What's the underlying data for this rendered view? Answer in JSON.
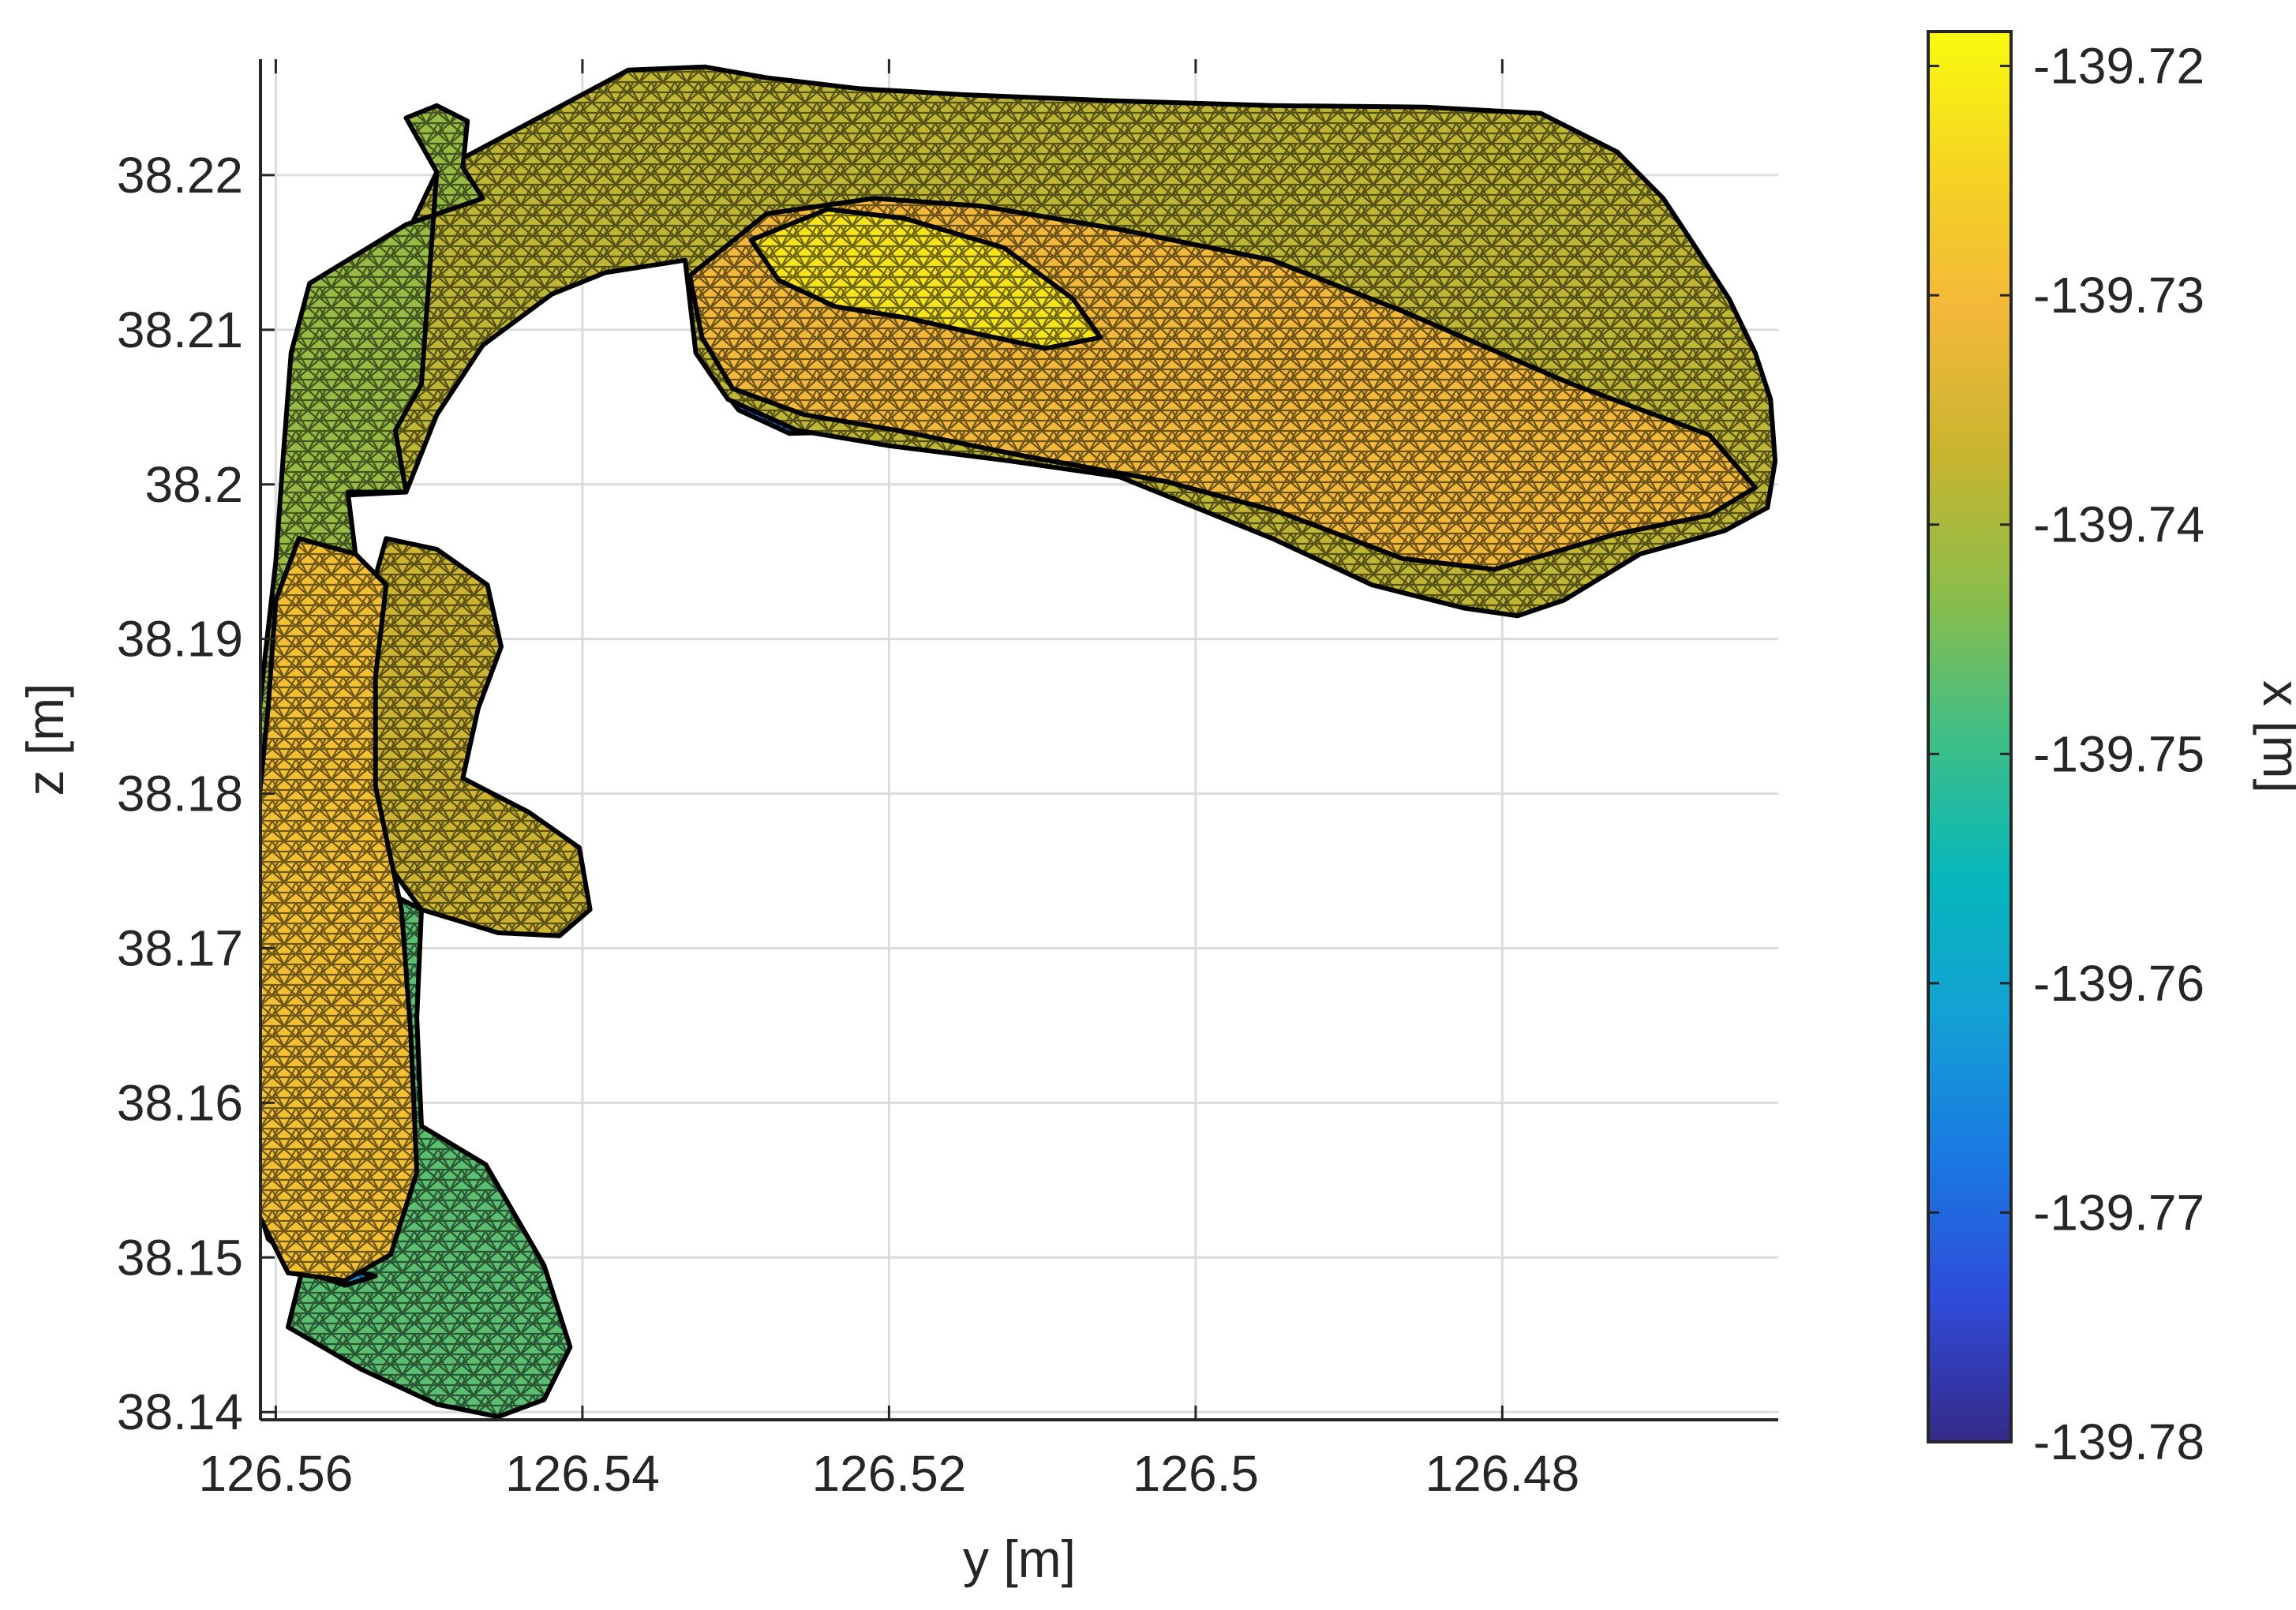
{
  "chart_data": {
    "type": "surface-mesh",
    "title": "",
    "xlabel": "y [m]",
    "ylabel": "z [m]",
    "colorbar_label": "x [m]",
    "x_axis": {
      "reversed": true,
      "lim": [
        126.561,
        126.462
      ],
      "ticks": [
        126.56,
        126.54,
        126.52,
        126.5,
        126.48
      ],
      "tick_labels": [
        "126.56",
        "126.54",
        "126.52",
        "126.5",
        "126.48"
      ]
    },
    "y_axis": {
      "lim": [
        38.1395,
        38.2275
      ],
      "ticks": [
        38.14,
        38.15,
        38.16,
        38.17,
        38.18,
        38.19,
        38.2,
        38.21,
        38.22
      ],
      "tick_labels": [
        "38.14",
        "38.15",
        "38.16",
        "38.17",
        "38.18",
        "38.19",
        "38.2",
        "38.21",
        "38.22"
      ]
    },
    "colorbar": {
      "colormap": "parula",
      "lim": [
        -139.78,
        -139.7185
      ],
      "ticks": [
        -139.72,
        -139.73,
        -139.74,
        -139.75,
        -139.76,
        -139.77,
        -139.78
      ],
      "tick_labels": [
        "-139.72",
        "-139.73",
        "-139.74",
        "-139.75",
        "-139.76",
        "-139.77",
        "-139.78"
      ],
      "stops": [
        "#352a87",
        "#2f4bd8",
        "#1a78e3",
        "#14a0d4",
        "#06b7bb",
        "#3fbf86",
        "#8bbd4a",
        "#c8b52f",
        "#f2b83a",
        "#f5d323",
        "#f9fb0e"
      ]
    },
    "grid": true,
    "mesh": {
      "edge_color": "#000000",
      "wireframe": true
    },
    "surfaces": [
      {
        "part": "upper-arm-shadow",
        "x_value": -139.768,
        "outline": [
          [
            126.5323,
            38.2097
          ],
          [
            126.5317,
            38.2072
          ],
          [
            126.5298,
            38.2048
          ],
          [
            126.5265,
            38.2033
          ],
          [
            126.5215,
            38.2034
          ],
          [
            126.5158,
            38.2031
          ],
          [
            126.511,
            38.2025
          ],
          [
            126.5175,
            38.2041
          ],
          [
            126.5225,
            38.2055
          ],
          [
            126.5268,
            38.2069
          ],
          [
            126.5305,
            38.2085
          ]
        ]
      },
      {
        "part": "upper-arm",
        "x_value": -139.738,
        "outline": [
          [
            126.537,
            38.2268
          ],
          [
            126.532,
            38.227
          ],
          [
            126.528,
            38.2263
          ],
          [
            126.522,
            38.2256
          ],
          [
            126.515,
            38.2252
          ],
          [
            126.505,
            38.2248
          ],
          [
            126.495,
            38.2245
          ],
          [
            126.485,
            38.2244
          ],
          [
            126.4775,
            38.224
          ],
          [
            126.4725,
            38.2215
          ],
          [
            126.4695,
            38.2185
          ],
          [
            126.4675,
            38.2155
          ],
          [
            126.4652,
            38.212
          ],
          [
            126.4635,
            38.2085
          ],
          [
            126.4625,
            38.2055
          ],
          [
            126.4622,
            38.2015
          ],
          [
            126.4627,
            38.1985
          ],
          [
            126.4655,
            38.197
          ],
          [
            126.471,
            38.1955
          ],
          [
            126.476,
            38.1925
          ],
          [
            126.479,
            38.1915
          ],
          [
            126.4825,
            38.192
          ],
          [
            126.4885,
            38.1935
          ],
          [
            126.495,
            38.1965
          ],
          [
            126.5,
            38.1985
          ],
          [
            126.505,
            38.2005
          ],
          [
            126.512,
            38.2015
          ],
          [
            126.52,
            38.2025
          ],
          [
            126.526,
            38.2035
          ],
          [
            126.5305,
            38.2055
          ],
          [
            126.5326,
            38.2085
          ],
          [
            126.5333,
            38.2145
          ],
          [
            126.5385,
            38.2137
          ],
          [
            126.542,
            38.2123
          ],
          [
            126.5465,
            38.209
          ],
          [
            126.5495,
            38.2045
          ],
          [
            126.5515,
            38.1995
          ],
          [
            126.5555,
            38.1993
          ],
          [
            126.5542,
            38.206
          ],
          [
            126.5533,
            38.2125
          ],
          [
            126.5508,
            38.2175
          ],
          [
            126.5495,
            38.2202
          ]
        ]
      },
      {
        "part": "upper-arm-warm-core",
        "x_value": -139.731,
        "outline": [
          [
            126.533,
            38.2135
          ],
          [
            126.528,
            38.2175
          ],
          [
            126.521,
            38.2185
          ],
          [
            126.514,
            38.218
          ],
          [
            126.505,
            38.2165
          ],
          [
            126.495,
            38.2145
          ],
          [
            126.4865,
            38.2112
          ],
          [
            126.4755,
            38.2065
          ],
          [
            126.4665,
            38.2032
          ],
          [
            126.4635,
            38.1998
          ],
          [
            126.4665,
            38.198
          ],
          [
            126.4725,
            38.1968
          ],
          [
            126.4805,
            38.1945
          ],
          [
            126.4865,
            38.1952
          ],
          [
            126.4945,
            38.1982
          ],
          [
            126.502,
            38.2002
          ],
          [
            126.511,
            38.2018
          ],
          [
            126.5195,
            38.2035
          ],
          [
            126.5255,
            38.2045
          ],
          [
            126.5302,
            38.2062
          ],
          [
            126.5322,
            38.2095
          ]
        ]
      },
      {
        "part": "upper-arm-hot-core",
        "x_value": -139.722,
        "outline": [
          [
            126.529,
            38.2158
          ],
          [
            126.524,
            38.2178
          ],
          [
            126.519,
            38.2172
          ],
          [
            126.5125,
            38.2153
          ],
          [
            126.508,
            38.212
          ],
          [
            126.5062,
            38.2095
          ],
          [
            126.5098,
            38.2088
          ],
          [
            126.5145,
            38.2098
          ],
          [
            126.519,
            38.2108
          ],
          [
            126.5235,
            38.2115
          ],
          [
            126.5272,
            38.2132
          ]
        ]
      },
      {
        "part": "vertical-stem",
        "x_value": -139.742,
        "outline": [
          [
            126.5495,
            38.2202
          ],
          [
            126.5515,
            38.2237
          ],
          [
            126.5495,
            38.2245
          ],
          [
            126.5475,
            38.2235
          ],
          [
            126.5478,
            38.2205
          ],
          [
            126.5465,
            38.2185
          ],
          [
            126.5515,
            38.2168
          ],
          [
            126.5578,
            38.213
          ],
          [
            126.559,
            38.2085
          ],
          [
            126.5595,
            38.202
          ],
          [
            126.56,
            38.195
          ],
          [
            126.5608,
            38.188
          ],
          [
            126.5615,
            38.181
          ],
          [
            126.5625,
            38.174
          ],
          [
            126.5585,
            38.1755
          ],
          [
            126.5565,
            38.1825
          ],
          [
            126.5555,
            38.189
          ],
          [
            126.5548,
            38.1955
          ],
          [
            126.5553,
            38.1995
          ],
          [
            126.5515,
            38.1995
          ],
          [
            126.5522,
            38.2035
          ],
          [
            126.5505,
            38.2065
          ]
        ]
      },
      {
        "part": "inner-lobe",
        "x_value": -139.736,
        "outline": [
          [
            126.5528,
            38.1965
          ],
          [
            126.5495,
            38.1958
          ],
          [
            126.5462,
            38.1935
          ],
          [
            126.5453,
            38.1895
          ],
          [
            126.5468,
            38.1855
          ],
          [
            126.5478,
            38.181
          ],
          [
            126.5435,
            38.1788
          ],
          [
            126.5402,
            38.1765
          ],
          [
            126.5395,
            38.1725
          ],
          [
            126.5415,
            38.1708
          ],
          [
            126.5455,
            38.171
          ],
          [
            126.5505,
            38.1725
          ],
          [
            126.5535,
            38.1765
          ],
          [
            126.5548,
            38.1835
          ],
          [
            126.5545,
            38.1905
          ]
        ]
      },
      {
        "part": "lower-lobe",
        "x_value": -139.747,
        "outline": [
          [
            126.5505,
            38.1725
          ],
          [
            126.5508,
            38.1655
          ],
          [
            126.5505,
            38.1585
          ],
          [
            126.5463,
            38.156
          ],
          [
            126.5425,
            38.1495
          ],
          [
            126.5408,
            38.1442
          ],
          [
            126.5425,
            38.1408
          ],
          [
            126.5455,
            38.1397
          ],
          [
            126.5495,
            38.1405
          ],
          [
            126.5545,
            38.1428
          ],
          [
            126.5592,
            38.1455
          ],
          [
            126.5582,
            38.1495
          ],
          [
            126.5565,
            38.1545
          ],
          [
            126.5542,
            38.1615
          ],
          [
            126.5535,
            38.1685
          ],
          [
            126.5525,
            38.1735
          ]
        ]
      },
      {
        "part": "lower-left-shadow",
        "x_value": -139.764,
        "outline": [
          [
            126.5625,
            38.1605
          ],
          [
            126.5618,
            38.1555
          ],
          [
            126.5605,
            38.1512
          ],
          [
            126.5578,
            38.149
          ],
          [
            126.5555,
            38.1482
          ],
          [
            126.5535,
            38.1488
          ],
          [
            126.5565,
            38.1495
          ],
          [
            126.5595,
            38.1515
          ],
          [
            126.5612,
            38.1565
          ]
        ]
      },
      {
        "part": "left-lobe",
        "x_value": -139.729,
        "outline": [
          [
            126.5548,
            38.1955
          ],
          [
            126.5585,
            38.1965
          ],
          [
            126.56,
            38.1925
          ],
          [
            126.5605,
            38.1855
          ],
          [
            126.5612,
            38.1785
          ],
          [
            126.562,
            38.1715
          ],
          [
            126.5628,
            38.1655
          ],
          [
            126.5627,
            38.1595
          ],
          [
            126.5615,
            38.1535
          ],
          [
            126.5592,
            38.149
          ],
          [
            126.5555,
            38.1485
          ],
          [
            126.5525,
            38.1502
          ],
          [
            126.5508,
            38.1555
          ],
          [
            126.5512,
            38.1645
          ],
          [
            126.5518,
            38.1725
          ],
          [
            126.5535,
            38.1805
          ],
          [
            126.5535,
            38.1875
          ],
          [
            126.5528,
            38.1935
          ]
        ]
      }
    ]
  }
}
